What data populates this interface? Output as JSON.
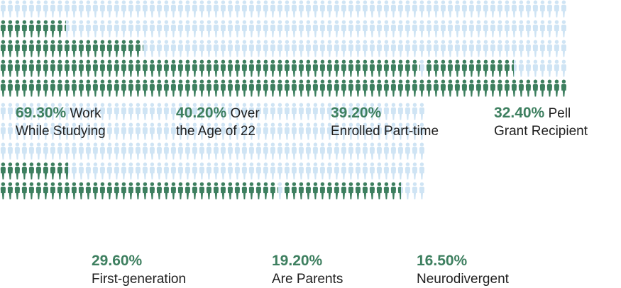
{
  "colors": {
    "filled": "#3d7f5f",
    "empty": "#cfe4f4",
    "pct_text": "#3d7f5f",
    "label_text": "#1f1f1f"
  },
  "icon": "person-icon",
  "chart_data": {
    "type": "pictograph",
    "title": "",
    "units_per_chart": 100,
    "rows": 5,
    "columns": 20,
    "items": [
      {
        "value": 69.3,
        "percent_label": "69.30%",
        "label": "Work While Studying"
      },
      {
        "value": 40.2,
        "percent_label": "40.20%",
        "label": "Over the Age of 22"
      },
      {
        "value": 39.2,
        "percent_label": "39.20%",
        "label": "Enrolled Part-time"
      },
      {
        "value": 32.4,
        "percent_label": "32.40%",
        "label": "Pell Grant Recipient"
      },
      {
        "value": 29.6,
        "percent_label": "29.60%",
        "label": "First-generation"
      },
      {
        "value": 19.2,
        "percent_label": "19.20%",
        "label": "Are Parents"
      },
      {
        "value": 16.5,
        "percent_label": "16.50%",
        "label": "Neurodivergent"
      }
    ]
  }
}
